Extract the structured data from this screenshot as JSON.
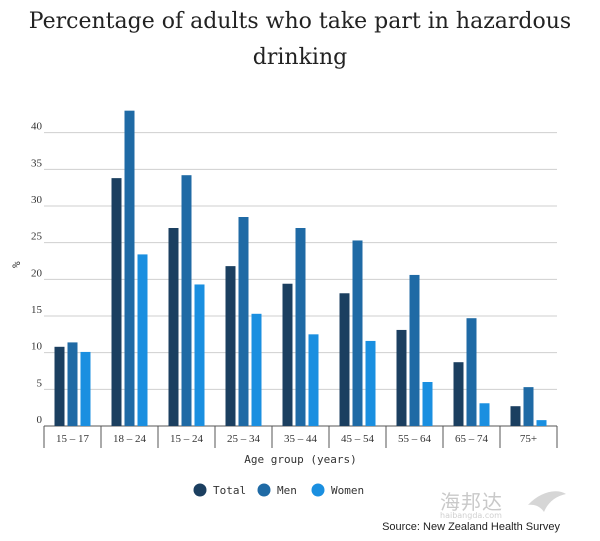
{
  "chart_data": {
    "type": "bar",
    "title_line1": "Percentage of adults who take part in hazardous",
    "title_line2": "drinking",
    "xlabel": "Age group (years)",
    "ylabel": "%",
    "ylim": [
      0,
      45
    ],
    "yticks": [
      0,
      5,
      10,
      15,
      20,
      25,
      30,
      35,
      40
    ],
    "grid": true,
    "legend_position": "bottom",
    "categories": [
      "15 – 17",
      "18 – 24",
      "15 – 24",
      "25 – 34",
      "35 – 44",
      "45 – 54",
      "55 – 64",
      "65 – 74",
      "75+"
    ],
    "series": [
      {
        "name": "Total",
        "color": "#1b3f60",
        "values": [
          10.8,
          33.8,
          27.0,
          21.8,
          19.4,
          18.1,
          13.1,
          8.7,
          2.7
        ]
      },
      {
        "name": "Men",
        "color": "#1f6aa5",
        "values": [
          11.4,
          43.0,
          34.2,
          28.5,
          27.0,
          25.3,
          20.6,
          14.7,
          5.3
        ]
      },
      {
        "name": "Women",
        "color": "#1a8fe0",
        "values": [
          10.1,
          23.4,
          19.3,
          15.3,
          12.5,
          11.6,
          6.0,
          3.1,
          0.8
        ]
      }
    ],
    "source": "Source: New Zealand Health Survey"
  },
  "watermark": {
    "main": "海邦达",
    "sub": "haibangda.com"
  }
}
